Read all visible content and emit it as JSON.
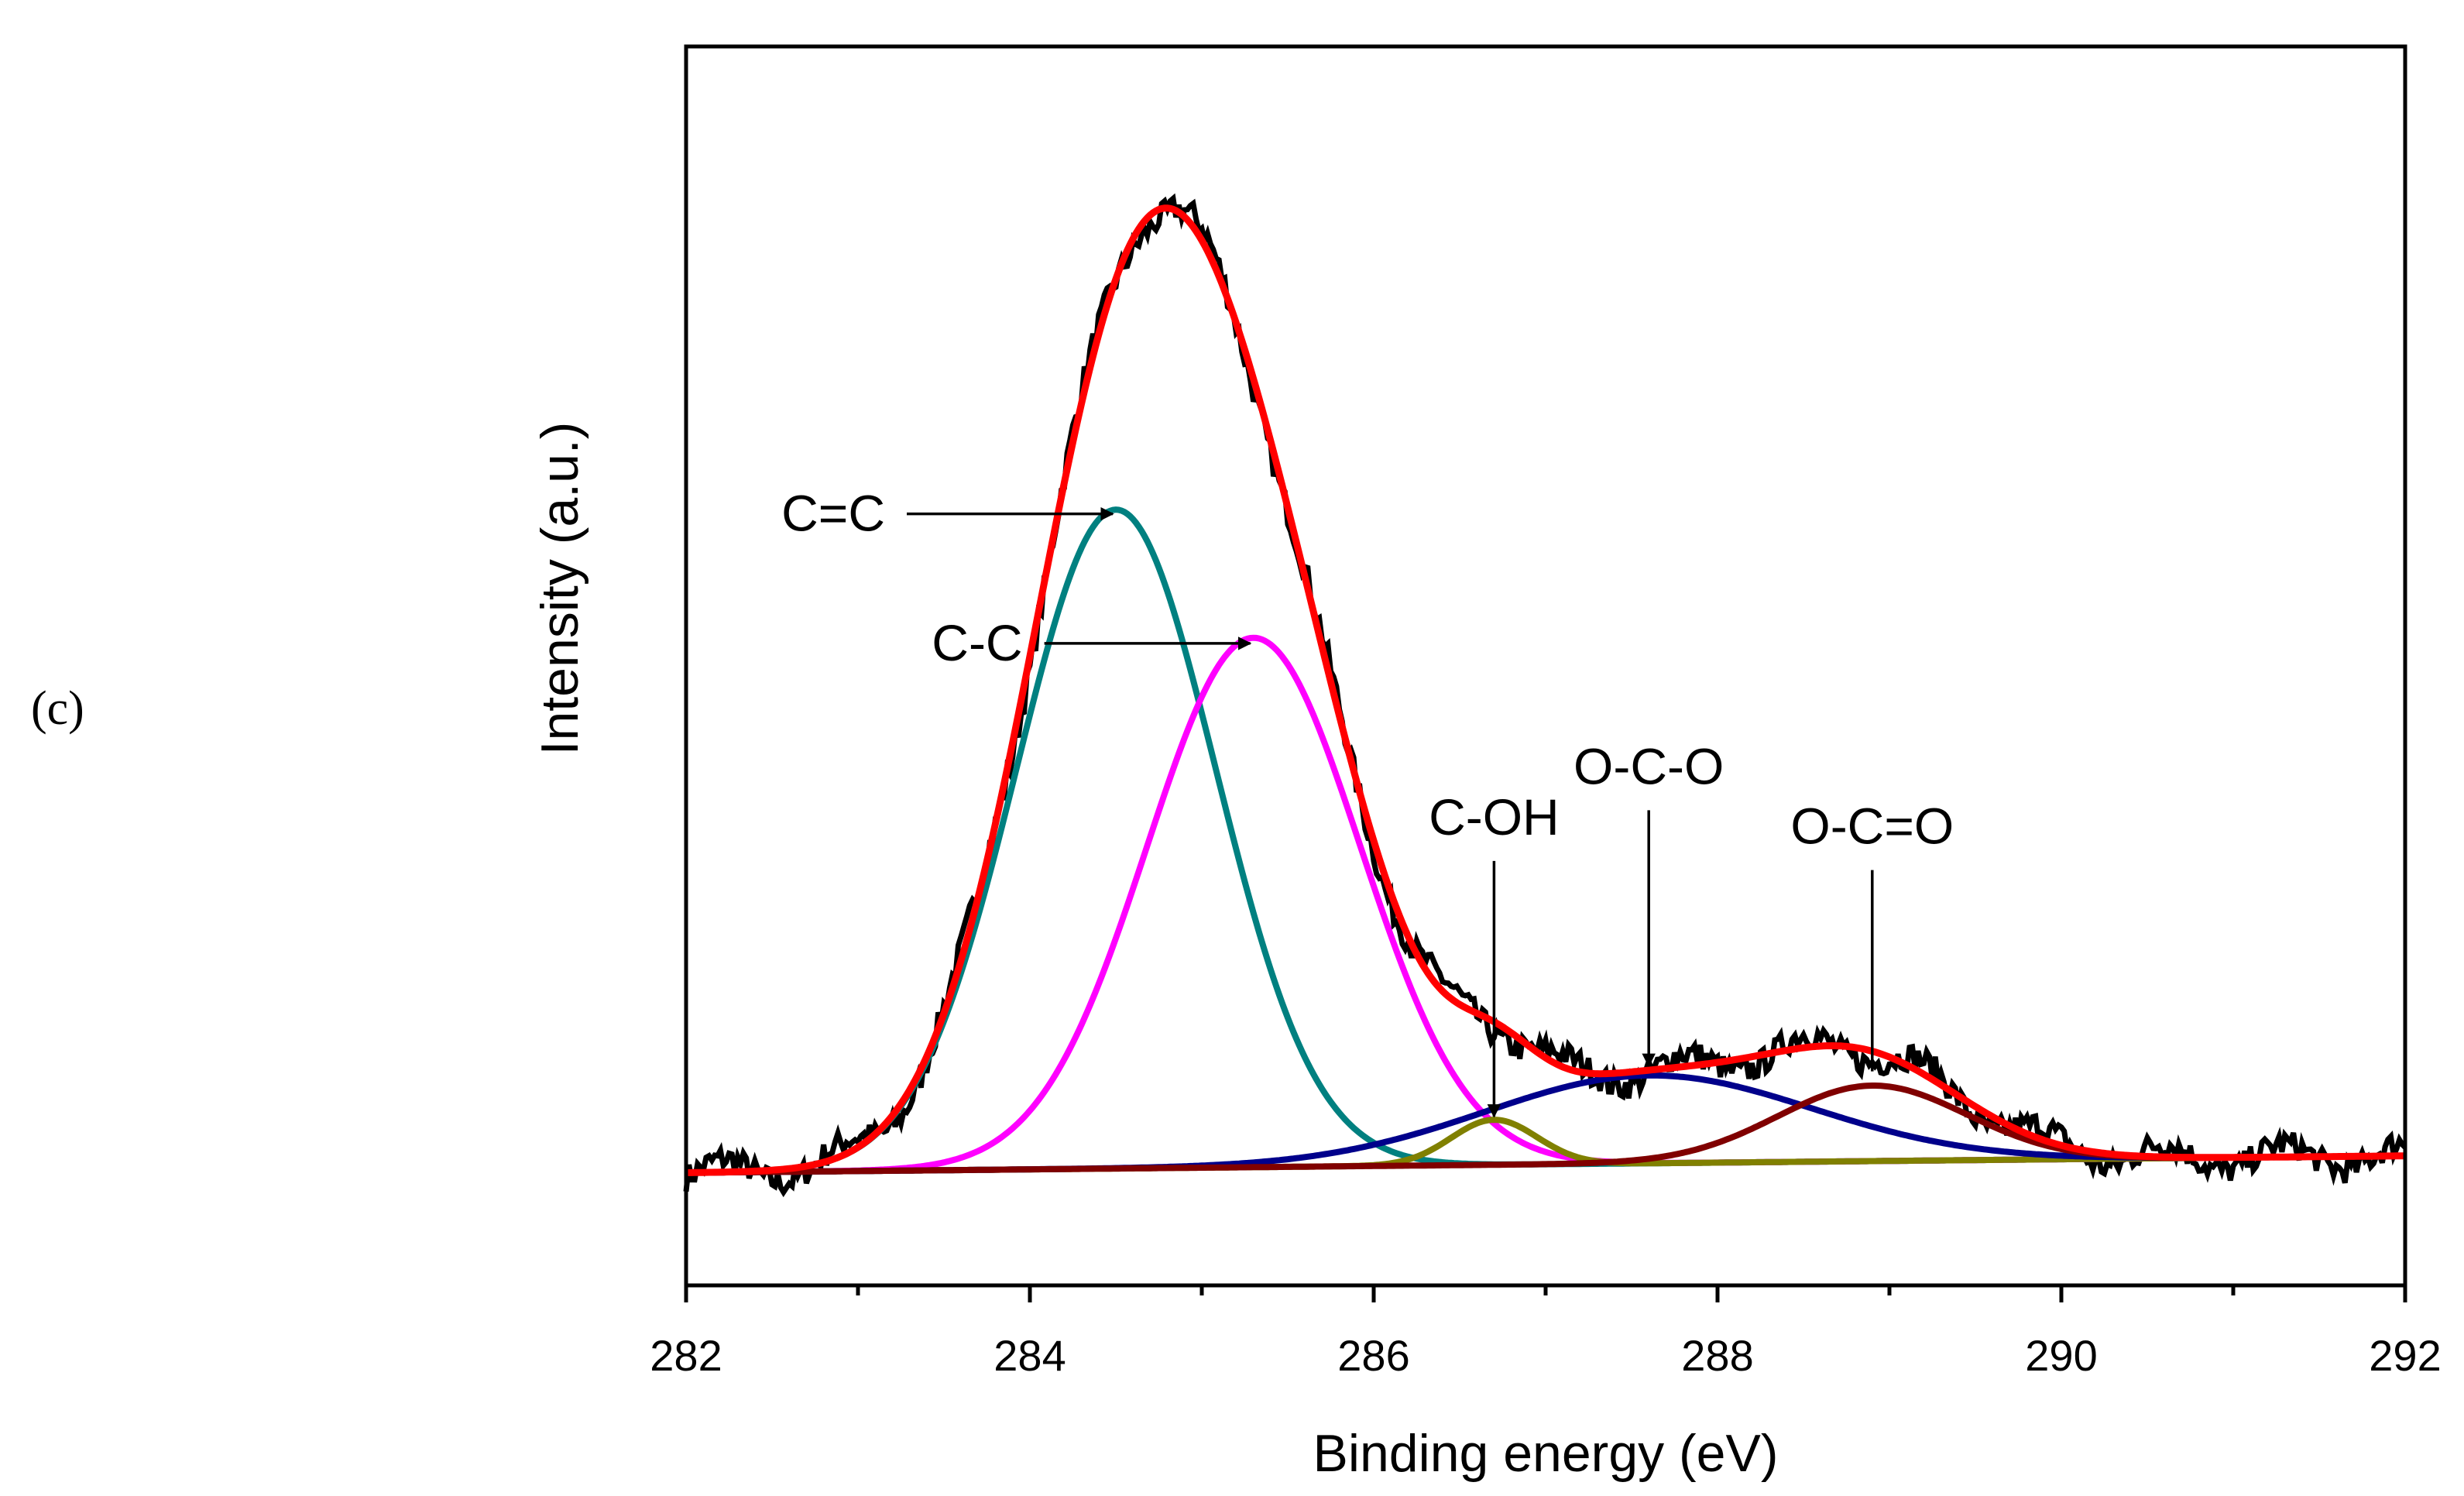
{
  "panel_label": "(c)",
  "colors": {
    "frame": "#000000",
    "measured": "#000000",
    "envelope": "#ff0000",
    "cc_double": "#008080",
    "cc_single": "#ff00ff",
    "coh": "#808000",
    "oco": "#00008b",
    "ocoo": "#800000"
  },
  "chart_data": {
    "type": "line",
    "title": "",
    "xlabel": "Binding energy (eV)",
    "ylabel": "Intensity (a.u.)",
    "xlim": [
      282,
      292
    ],
    "ylim": [
      -0.1,
      1.0
    ],
    "xticks": [
      282,
      284,
      286,
      288,
      290,
      292
    ],
    "x_minor_ticks": [
      283,
      285,
      287,
      289,
      291
    ],
    "grid": false,
    "legend": "none",
    "baseline": {
      "start": 0.0,
      "end": 0.015
    },
    "measured_noise_amplitude": 0.012,
    "series": [
      {
        "name": "C=C",
        "role": "component",
        "center": 284.5,
        "height": 0.585,
        "sigma": 0.58
      },
      {
        "name": "C-C",
        "role": "component",
        "center": 285.3,
        "height": 0.47,
        "sigma": 0.62
      },
      {
        "name": "C-OH",
        "role": "component",
        "center": 286.7,
        "height": 0.04,
        "sigma": 0.25
      },
      {
        "name": "O-C-O",
        "role": "component",
        "center": 287.6,
        "height": 0.078,
        "sigma": 0.95
      },
      {
        "name": "O-C=O",
        "role": "component",
        "center": 288.9,
        "height": 0.067,
        "sigma": 0.55
      },
      {
        "name": "Envelope",
        "role": "fit_envelope"
      },
      {
        "name": "Measured",
        "role": "measured"
      }
    ],
    "annotations": [
      {
        "label": "C=C",
        "target_x": 284.5,
        "target_y": 0.585,
        "style": "horizontal-arrow"
      },
      {
        "label": "C-C",
        "target_x": 285.3,
        "target_y": 0.47,
        "style": "horizontal-arrow"
      },
      {
        "label": "C-OH",
        "target_x": 286.7,
        "target_y": 0.05,
        "style": "vertical-arrow"
      },
      {
        "label": "O-C-O",
        "target_x": 287.6,
        "target_y": 0.095,
        "style": "vertical-arrow"
      },
      {
        "label": "O-C=O",
        "target_x": 288.9,
        "target_y": 0.09,
        "style": "vertical-line"
      }
    ]
  }
}
